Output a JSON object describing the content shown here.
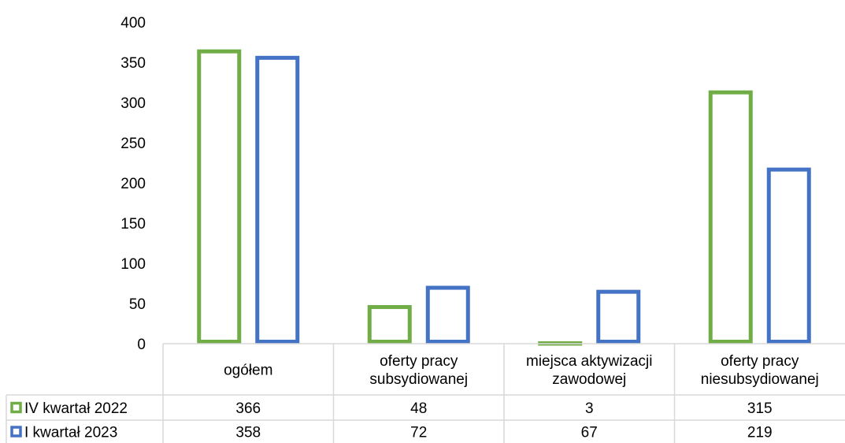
{
  "chart_data": {
    "type": "bar",
    "categories": [
      [
        "ogółem"
      ],
      [
        "oferty pracy",
        "subsydiowanej"
      ],
      [
        "miejsca aktywizacji",
        "zawodowej"
      ],
      [
        "oferty pracy",
        "niesubsydiowanej"
      ]
    ],
    "series": [
      {
        "name": "IV kwartał 2022",
        "values": [
          366,
          48,
          3,
          315
        ],
        "color": "#70ad47"
      },
      {
        "name": "I kwartał 2023",
        "values": [
          358,
          72,
          67,
          219
        ],
        "color": "#4472c4"
      }
    ],
    "ylim": [
      0,
      400
    ],
    "yticks": [
      0,
      50,
      100,
      150,
      200,
      250,
      300,
      350,
      400
    ],
    "bar_style": "outlined",
    "legend": "data-table",
    "grid": false
  }
}
